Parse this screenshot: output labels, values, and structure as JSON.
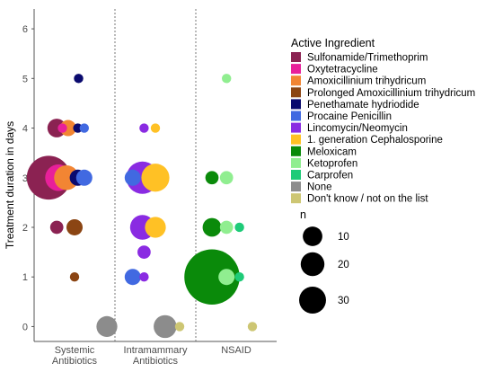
{
  "chart_data": {
    "type": "scatter",
    "ylabel": "Treatment duration in days",
    "ylim": [
      -0.3,
      6.4
    ],
    "yticks": [
      0,
      1,
      2,
      3,
      4,
      5,
      6
    ],
    "panels": [
      {
        "name": "Systemic\nAntibiotics"
      },
      {
        "name": "Intramammary\nAntibiotics"
      },
      {
        "name": "NSAID"
      }
    ],
    "legend": {
      "title": "Active Ingredient",
      "items": [
        {
          "name": "Sulfonamide/Trimethoprim",
          "color": "#8B2252"
        },
        {
          "name": "Oxytetracycline",
          "color": "#E8209A"
        },
        {
          "name": "Amoxicillinium trihydricum",
          "color": "#F28533"
        },
        {
          "name": "Prolonged Amoxicillinium trihydricum",
          "color": "#8B4513"
        },
        {
          "name": "Penethamate hydriodide",
          "color": "#0A0A6E"
        },
        {
          "name": "Procaine Penicillin",
          "color": "#4169E1"
        },
        {
          "name": "Lincomycin/Neomycin",
          "color": "#8A2BE2"
        },
        {
          "name": "1. generation Cephalosporine",
          "color": "#FFC125"
        },
        {
          "name": "Meloxicam",
          "color": "#0A8A0A"
        },
        {
          "name": "Ketoprofen",
          "color": "#90EE90"
        },
        {
          "name": "Carprofen",
          "color": "#1ECB78"
        },
        {
          "name": "None",
          "color": "#8C8C8C"
        },
        {
          "name": "Don't know / not on the list",
          "color": "#CDC673"
        }
      ]
    },
    "size_legend": {
      "title": "n",
      "values": [
        10,
        20,
        30
      ]
    },
    "points": [
      {
        "panel": 0,
        "x": 0.18,
        "y": 3,
        "n": 22,
        "series": "Sulfonamide/Trimethoprim"
      },
      {
        "panel": 0,
        "x": 0.3,
        "y": 3,
        "n": 8,
        "series": "Oxytetracycline"
      },
      {
        "panel": 0,
        "x": 0.4,
        "y": 3,
        "n": 7,
        "series": "Amoxicillinium trihydricum"
      },
      {
        "panel": 0,
        "x": 0.54,
        "y": 3,
        "n": 3,
        "series": "Penethamate hydriodide"
      },
      {
        "panel": 0,
        "x": 0.62,
        "y": 3,
        "n": 3,
        "series": "Procaine Penicillin"
      },
      {
        "panel": 0,
        "x": 0.28,
        "y": 4,
        "n": 4,
        "series": "Sulfonamide/Trimethoprim"
      },
      {
        "panel": 0,
        "x": 0.35,
        "y": 4,
        "n": 1,
        "series": "Oxytetracycline"
      },
      {
        "panel": 0,
        "x": 0.42,
        "y": 4,
        "n": 3,
        "series": "Amoxicillinium trihydricum"
      },
      {
        "panel": 0,
        "x": 0.54,
        "y": 4,
        "n": 1,
        "series": "Penethamate hydriodide"
      },
      {
        "panel": 0,
        "x": 0.62,
        "y": 4,
        "n": 1,
        "series": "Procaine Penicillin"
      },
      {
        "panel": 0,
        "x": 0.55,
        "y": 5,
        "n": 1,
        "series": "Penethamate hydriodide"
      },
      {
        "panel": 0,
        "x": 0.28,
        "y": 2,
        "n": 2,
        "series": "Sulfonamide/Trimethoprim"
      },
      {
        "panel": 0,
        "x": 0.5,
        "y": 2,
        "n": 3,
        "series": "Prolonged Amoxicillinium trihydricum"
      },
      {
        "panel": 0,
        "x": 0.5,
        "y": 1,
        "n": 1,
        "series": "Prolonged Amoxicillinium trihydricum"
      },
      {
        "panel": 0,
        "x": 0.9,
        "y": 0,
        "n": 5,
        "series": "None"
      },
      {
        "panel": 1,
        "x": 0.22,
        "y": 3,
        "n": 3,
        "series": "Procaine Penicillin"
      },
      {
        "panel": 1,
        "x": 0.34,
        "y": 3,
        "n": 12,
        "series": "Lincomycin/Neomycin"
      },
      {
        "panel": 1,
        "x": 0.5,
        "y": 3,
        "n": 9,
        "series": "1. generation Cephalosporine"
      },
      {
        "panel": 1,
        "x": 0.36,
        "y": 4,
        "n": 1,
        "series": "Lincomycin/Neomycin"
      },
      {
        "panel": 1,
        "x": 0.5,
        "y": 4,
        "n": 1,
        "series": "1. generation Cephalosporine"
      },
      {
        "panel": 1,
        "x": 0.34,
        "y": 2,
        "n": 7,
        "series": "Lincomycin/Neomycin"
      },
      {
        "panel": 1,
        "x": 0.5,
        "y": 2,
        "n": 5,
        "series": "1. generation Cephalosporine"
      },
      {
        "panel": 1,
        "x": 0.36,
        "y": 1.5,
        "n": 2,
        "series": "Lincomycin/Neomycin"
      },
      {
        "panel": 1,
        "x": 0.22,
        "y": 1,
        "n": 3,
        "series": "Procaine Penicillin"
      },
      {
        "panel": 1,
        "x": 0.36,
        "y": 1,
        "n": 1,
        "series": "Lincomycin/Neomycin"
      },
      {
        "panel": 1,
        "x": 0.62,
        "y": 0,
        "n": 6,
        "series": "None"
      },
      {
        "panel": 1,
        "x": 0.8,
        "y": 0,
        "n": 1,
        "series": "Don't know / not on the list"
      },
      {
        "panel": 2,
        "x": 0.2,
        "y": 1,
        "n": 35,
        "series": "Meloxicam"
      },
      {
        "panel": 2,
        "x": 0.38,
        "y": 1,
        "n": 3,
        "series": "Ketoprofen"
      },
      {
        "panel": 2,
        "x": 0.54,
        "y": 1,
        "n": 1,
        "series": "Carprofen"
      },
      {
        "panel": 2,
        "x": 0.2,
        "y": 2,
        "n": 4,
        "series": "Meloxicam"
      },
      {
        "panel": 2,
        "x": 0.38,
        "y": 2,
        "n": 2,
        "series": "Ketoprofen"
      },
      {
        "panel": 2,
        "x": 0.54,
        "y": 2,
        "n": 1,
        "series": "Carprofen"
      },
      {
        "panel": 2,
        "x": 0.2,
        "y": 3,
        "n": 2,
        "series": "Meloxicam"
      },
      {
        "panel": 2,
        "x": 0.38,
        "y": 3,
        "n": 2,
        "series": "Ketoprofen"
      },
      {
        "panel": 2,
        "x": 0.38,
        "y": 5,
        "n": 1,
        "series": "Ketoprofen"
      },
      {
        "panel": 2,
        "x": 0.7,
        "y": 0,
        "n": 1,
        "series": "Don't know / not on the list"
      }
    ]
  }
}
